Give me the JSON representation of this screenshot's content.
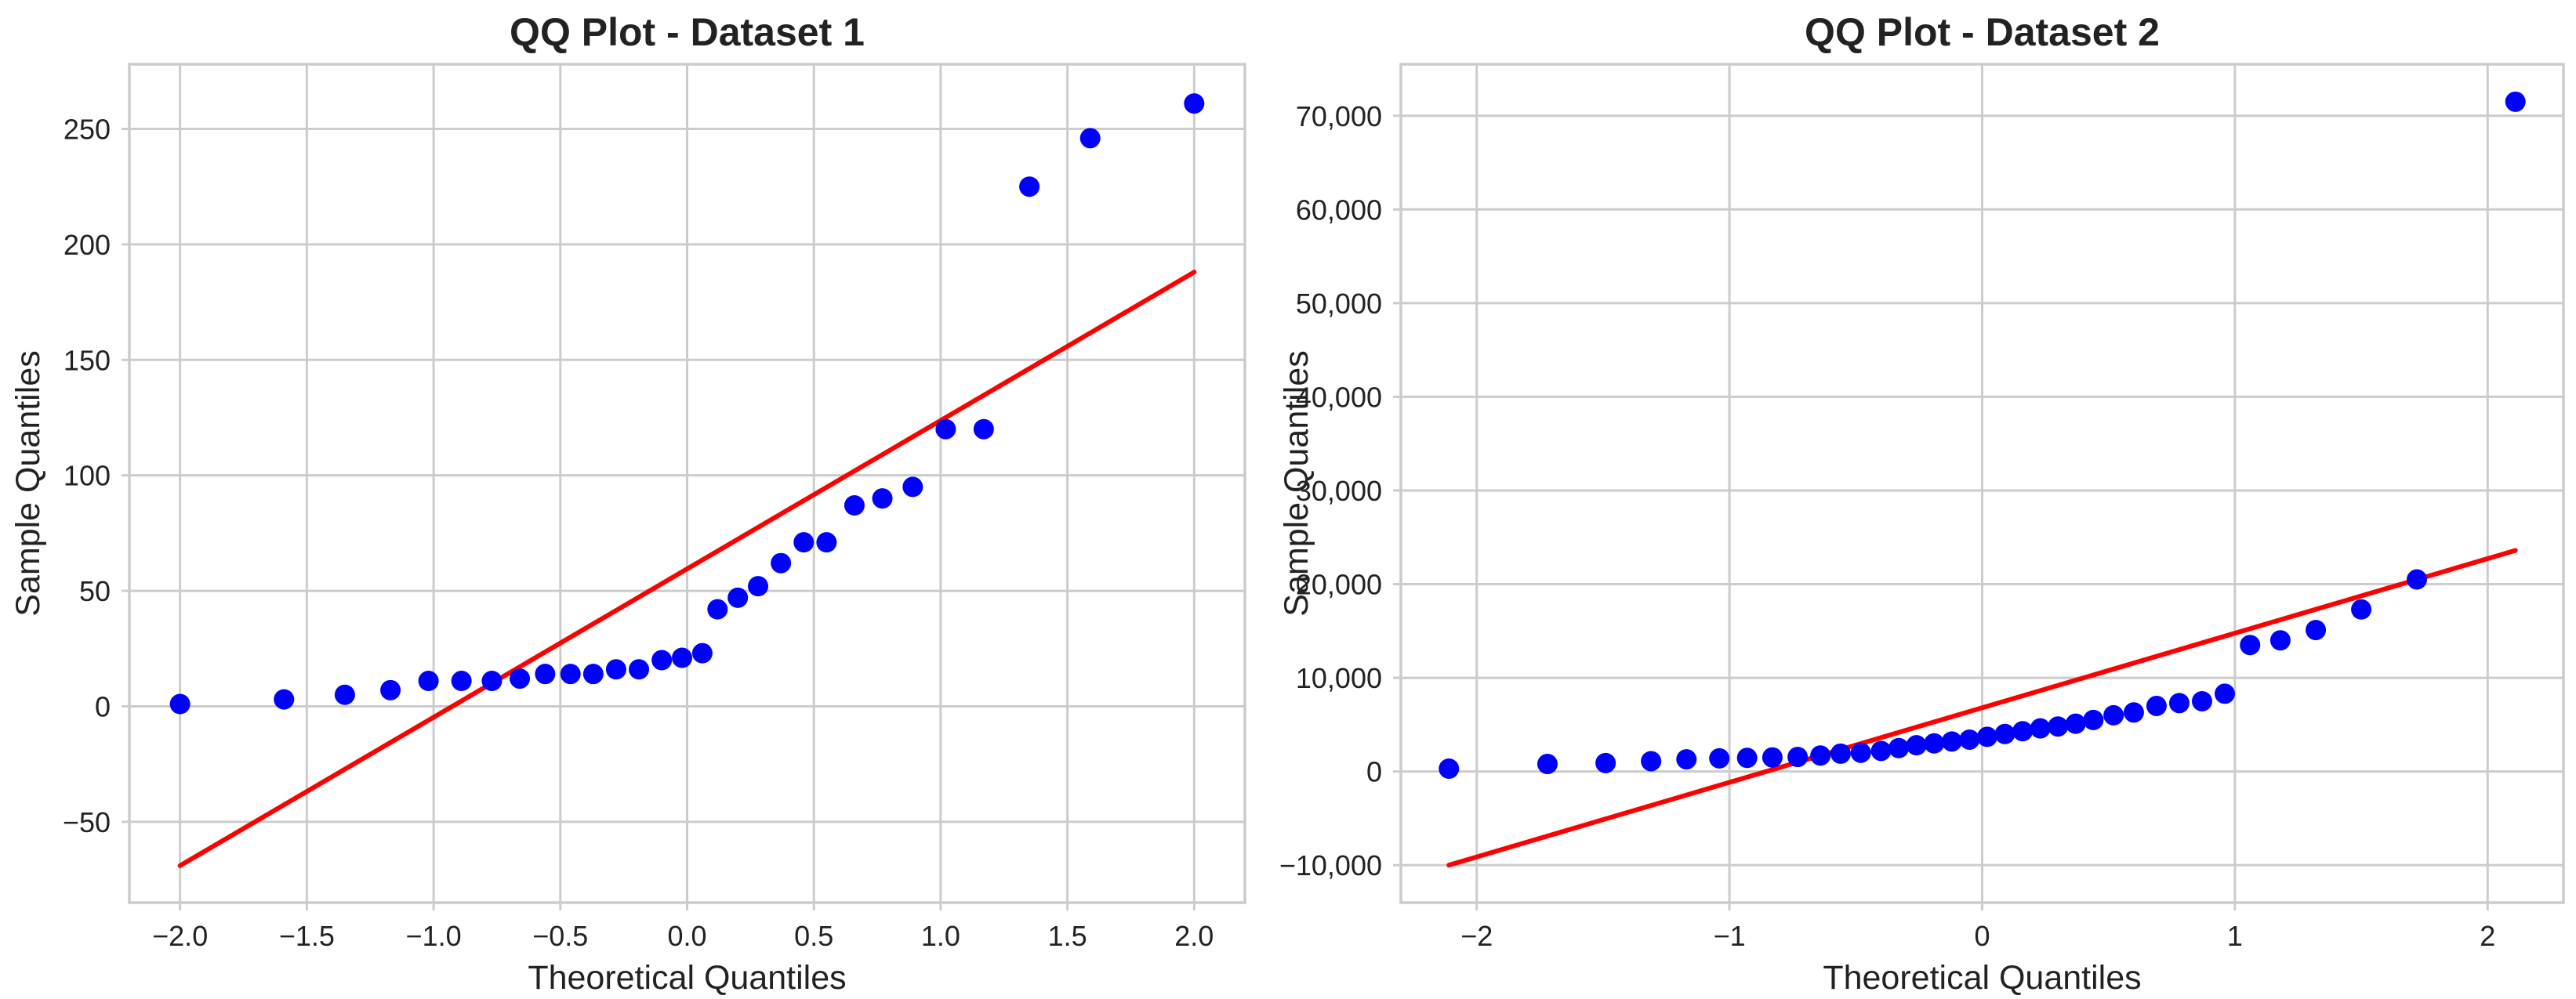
{
  "chart_data": [
    {
      "type": "scatter",
      "title": "QQ Plot - Dataset 1",
      "xlabel": "Theoretical Quantiles",
      "ylabel": "Sample Quantiles",
      "xlim": [
        -2.2,
        2.2
      ],
      "ylim": [
        -85,
        278
      ],
      "xticks": [
        -2.0,
        -1.5,
        -1.0,
        -0.5,
        0.0,
        0.5,
        1.0,
        1.5,
        2.0
      ],
      "xtick_labels": [
        "−2.0",
        "−1.5",
        "−1.0",
        "−0.5",
        "0.0",
        "0.5",
        "1.0",
        "1.5",
        "2.0"
      ],
      "yticks": [
        -50,
        0,
        50,
        100,
        150,
        200,
        250
      ],
      "ytick_labels": [
        "−50",
        "0",
        "50",
        "100",
        "150",
        "200",
        "250"
      ],
      "grid": true,
      "points": {
        "color": "#0000ff",
        "x": [
          -2.0,
          -1.59,
          -1.35,
          -1.17,
          -1.02,
          -0.89,
          -0.77,
          -0.66,
          -0.56,
          -0.46,
          -0.37,
          -0.28,
          -0.19,
          -0.1,
          -0.02,
          0.06,
          0.12,
          0.2,
          0.28,
          0.37,
          0.46,
          0.55,
          0.66,
          0.77,
          0.89,
          1.02,
          1.17,
          1.35,
          1.59,
          2.0
        ],
        "y": [
          1,
          3,
          5,
          7,
          11,
          11,
          11,
          12,
          14,
          14,
          14,
          16,
          16,
          20,
          21,
          23,
          42,
          47,
          52,
          62,
          71,
          71,
          87,
          90,
          95,
          120,
          120,
          225,
          246,
          261
        ]
      },
      "fit_line": {
        "color": "#ff0000",
        "x": [
          -2.0,
          2.0
        ],
        "y": [
          -69,
          188
        ]
      }
    },
    {
      "type": "scatter",
      "title": "QQ Plot - Dataset 2",
      "xlabel": "Theoretical Quantiles",
      "ylabel": "Sample Quantiles",
      "xlim": [
        -2.3,
        2.3
      ],
      "ylim": [
        -14000,
        75500
      ],
      "xticks": [
        -2,
        -1,
        0,
        1,
        2
      ],
      "xtick_labels": [
        "−2",
        "−1",
        "0",
        "1",
        "2"
      ],
      "yticks": [
        -10000,
        0,
        10000,
        20000,
        30000,
        40000,
        50000,
        60000,
        70000
      ],
      "ytick_labels": [
        "−10,000",
        "0",
        "10,000",
        "20,000",
        "30,000",
        "40,000",
        "50,000",
        "60,000",
        "70,000"
      ],
      "grid": true,
      "points": {
        "color": "#0000ff",
        "x": [
          -2.11,
          -1.72,
          -1.49,
          -1.31,
          -1.17,
          -1.04,
          -0.93,
          -0.83,
          -0.73,
          -0.64,
          -0.56,
          -0.48,
          -0.4,
          -0.33,
          -0.26,
          -0.19,
          -0.12,
          -0.05,
          0.02,
          0.09,
          0.16,
          0.23,
          0.3,
          0.37,
          0.44,
          0.52,
          0.6,
          0.69,
          0.78,
          0.87,
          0.96,
          1.06,
          1.18,
          1.32,
          1.5,
          1.72,
          2.11
        ],
        "y": [
          300,
          800,
          900,
          1100,
          1300,
          1400,
          1450,
          1500,
          1550,
          1700,
          1900,
          2000,
          2200,
          2500,
          2800,
          3000,
          3200,
          3400,
          3700,
          4000,
          4300,
          4600,
          4800,
          5100,
          5500,
          6000,
          6300,
          7000,
          7300,
          7500,
          8300,
          13500,
          14000,
          15100,
          17300,
          20500,
          71500
        ]
      },
      "fit_line": {
        "color": "#ff0000",
        "x": [
          -2.11,
          2.11
        ],
        "y": [
          -10000,
          23600
        ]
      }
    }
  ]
}
